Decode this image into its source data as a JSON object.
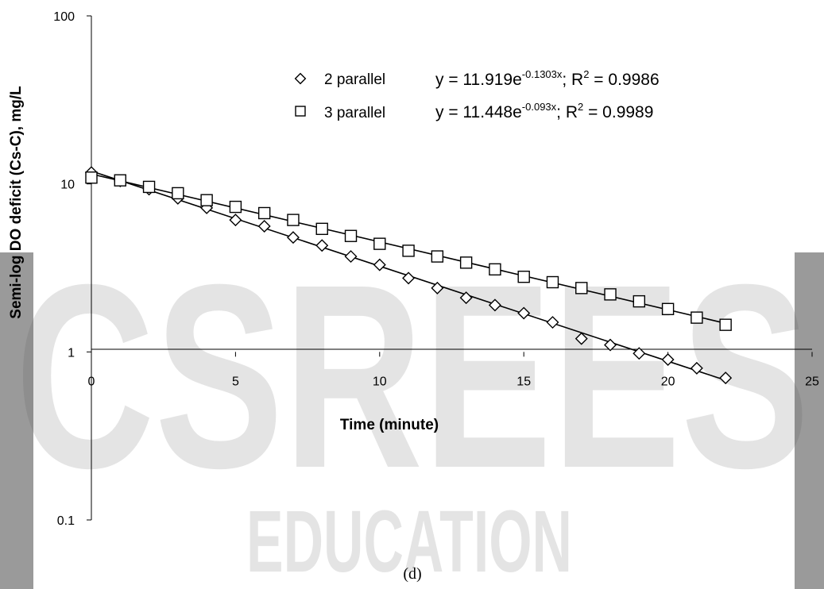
{
  "watermark": {
    "text": "CSREES",
    "subtext": "EDUCATION"
  },
  "caption": "(d)",
  "chart_data": {
    "type": "scatter",
    "title": "",
    "xlabel": "Time (minute)",
    "ylabel": "Semi-log DO deficit (Cs-C), mg/L",
    "xlim": [
      0,
      25
    ],
    "ylim": [
      0.1,
      100
    ],
    "yscale": "log",
    "grid": false,
    "x_ticks": [
      "0",
      "5",
      "10",
      "15",
      "20",
      "25"
    ],
    "y_ticks": [
      "0.1",
      "1",
      "10",
      "100"
    ],
    "legend_position": "top-right",
    "series": [
      {
        "name": "2 parallel",
        "marker": "diamond",
        "equation": {
          "lead": "y = 11.919e",
          "exp": "-0.1303x",
          "tail": "; R",
          "r2_sup": "2",
          "r2_value": " = 0.9986"
        },
        "fit": {
          "a": 11.919,
          "k": -0.1303
        },
        "points": [
          [
            0,
            11.7
          ],
          [
            1,
            10.4
          ],
          [
            2,
            9.3
          ],
          [
            3,
            8.2
          ],
          [
            4,
            7.2
          ],
          [
            5,
            6.1
          ],
          [
            6,
            5.6
          ],
          [
            7,
            4.8
          ],
          [
            8,
            4.3
          ],
          [
            9,
            3.7
          ],
          [
            10,
            3.3
          ],
          [
            11,
            2.75
          ],
          [
            12,
            2.4
          ],
          [
            13,
            2.1
          ],
          [
            14,
            1.9
          ],
          [
            15,
            1.7
          ],
          [
            16,
            1.5
          ],
          [
            17,
            1.2
          ],
          [
            18,
            1.1
          ],
          [
            19,
            0.98
          ],
          [
            20,
            0.9
          ],
          [
            21,
            0.8
          ],
          [
            22,
            0.7
          ]
        ]
      },
      {
        "name": "3 parallel",
        "marker": "square",
        "equation": {
          "lead": "y = 11.448e",
          "exp": "-0.093x",
          "tail": ";  R",
          "r2_sup": "2",
          "r2_value": " = 0.9989"
        },
        "fit": {
          "a": 11.448,
          "k": -0.093
        },
        "points": [
          [
            0,
            10.9
          ],
          [
            1,
            10.5
          ],
          [
            2,
            9.6
          ],
          [
            3,
            8.8
          ],
          [
            4,
            8.0
          ],
          [
            5,
            7.3
          ],
          [
            6,
            6.7
          ],
          [
            7,
            6.1
          ],
          [
            8,
            5.4
          ],
          [
            9,
            4.9
          ],
          [
            10,
            4.4
          ],
          [
            11,
            4.0
          ],
          [
            12,
            3.7
          ],
          [
            13,
            3.4
          ],
          [
            14,
            3.1
          ],
          [
            15,
            2.8
          ],
          [
            16,
            2.6
          ],
          [
            17,
            2.4
          ],
          [
            18,
            2.2
          ],
          [
            19,
            2.0
          ],
          [
            20,
            1.8
          ],
          [
            21,
            1.6
          ],
          [
            22,
            1.45
          ]
        ]
      }
    ]
  }
}
